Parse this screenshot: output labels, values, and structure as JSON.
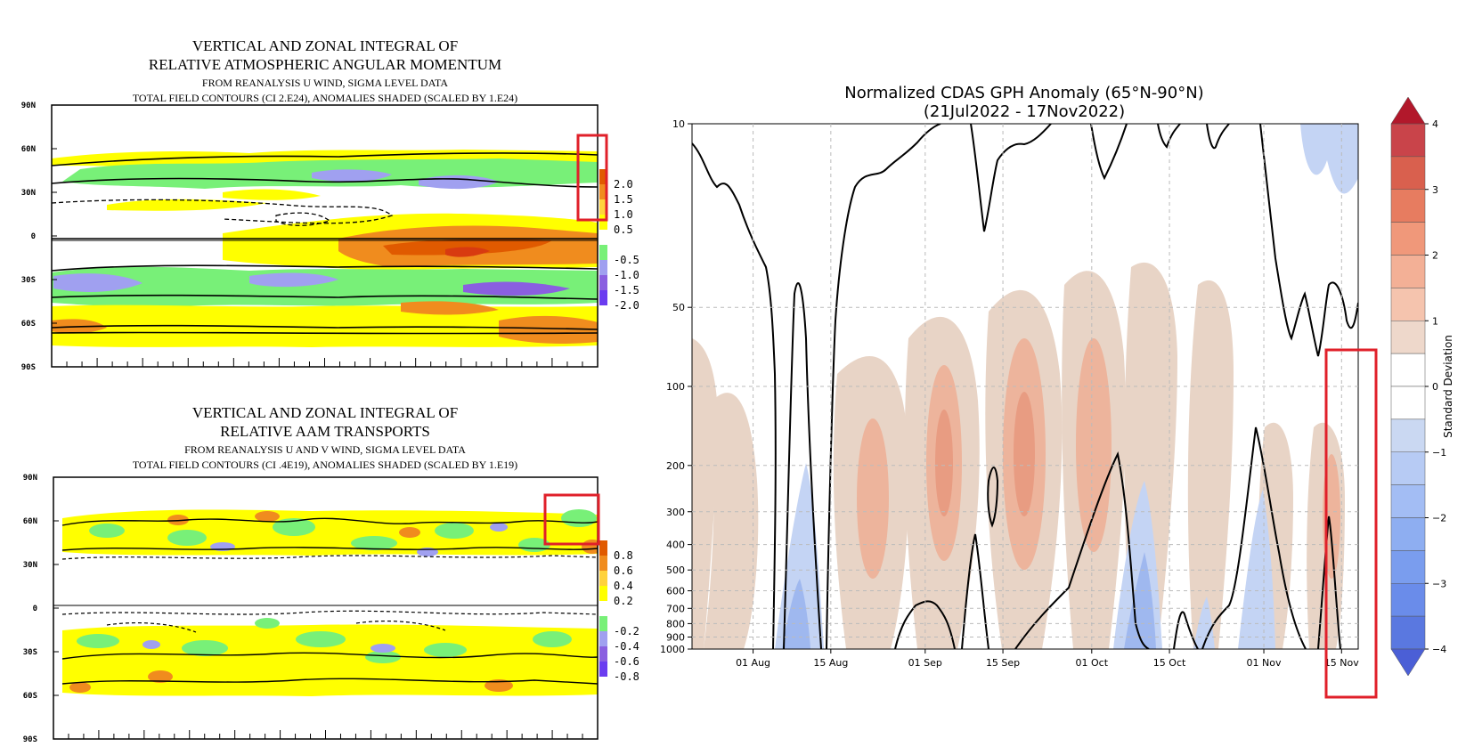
{
  "chart_data": [
    {
      "type": "heatmap",
      "title": "VERTICAL AND ZONAL INTEGRAL OF",
      "title2": "RELATIVE ATMOSPHERIC ANGULAR MOMENTUM",
      "subtitle": "FROM REANALYSIS U WIND,  SIGMA LEVEL DATA",
      "subtitle2": "TOTAL FIELD CONTOURS (CI 2.E24),  ANOMALIES SHADED (SCALED BY 1.E24)",
      "y_ticks": [
        "90N",
        "60N",
        "30N",
        "0",
        "30S",
        "60S",
        "90S"
      ],
      "legend": [
        "2.0",
        "1.5",
        "1.0",
        "0.5",
        "-0.5",
        "-1.0",
        "-1.5",
        "-2.0"
      ],
      "colors": {
        "pos_high": "#e05a00",
        "pos_mid": "#f08c1e",
        "pos_low": "#ffd23c",
        "pos_min": "#ffff00",
        "neg_min": "#78f078",
        "neg_mid": "#a0a0f0",
        "neg_high": "#8a5fe0",
        "neg_max": "#6a3cf0"
      }
    },
    {
      "type": "heatmap",
      "title": "VERTICAL AND ZONAL INTEGRAL OF",
      "title2": "RELATIVE AAM TRANSPORTS",
      "subtitle": "FROM REANALYSIS U AND V WIND,  SIGMA LEVEL DATA",
      "subtitle2": "TOTAL FIELD CONTOURS (CI .4E19),  ANOMALIES SHADED (SCALED BY 1.E19)",
      "y_ticks": [
        "90N",
        "60N",
        "30N",
        "0",
        "30S",
        "60S",
        "90S"
      ],
      "legend": [
        "0.8",
        "0.6",
        "0.4",
        "0.2",
        "-0.2",
        "-0.4",
        "-0.6",
        "-0.8"
      ]
    },
    {
      "type": "heatmap",
      "title": "Normalized CDAS GPH Anomaly (65°N-90°N)",
      "subtitle": "(21Jul2022 - 17Nov2022)",
      "x_ticks": [
        "01 Aug",
        "15 Aug",
        "01 Sep",
        "15 Sep",
        "01 Oct",
        "15 Oct",
        "01 Nov",
        "15 Nov"
      ],
      "y_ticks": [
        "10",
        "50",
        "100",
        "200",
        "300",
        "400",
        "500",
        "600",
        "700",
        "800",
        "900",
        "1000"
      ],
      "colorbar_label": "Standard Deviation",
      "colorbar_ticks": [
        "4",
        "3",
        "2",
        "1",
        "0",
        "−1",
        "−2",
        "−3",
        "−4"
      ],
      "colors": {
        "warm": "#e8b8a0",
        "warm_strong": "#ef8a6e",
        "cool": "#a9c4f2",
        "cool_strong": "#7d9ff0"
      }
    }
  ]
}
